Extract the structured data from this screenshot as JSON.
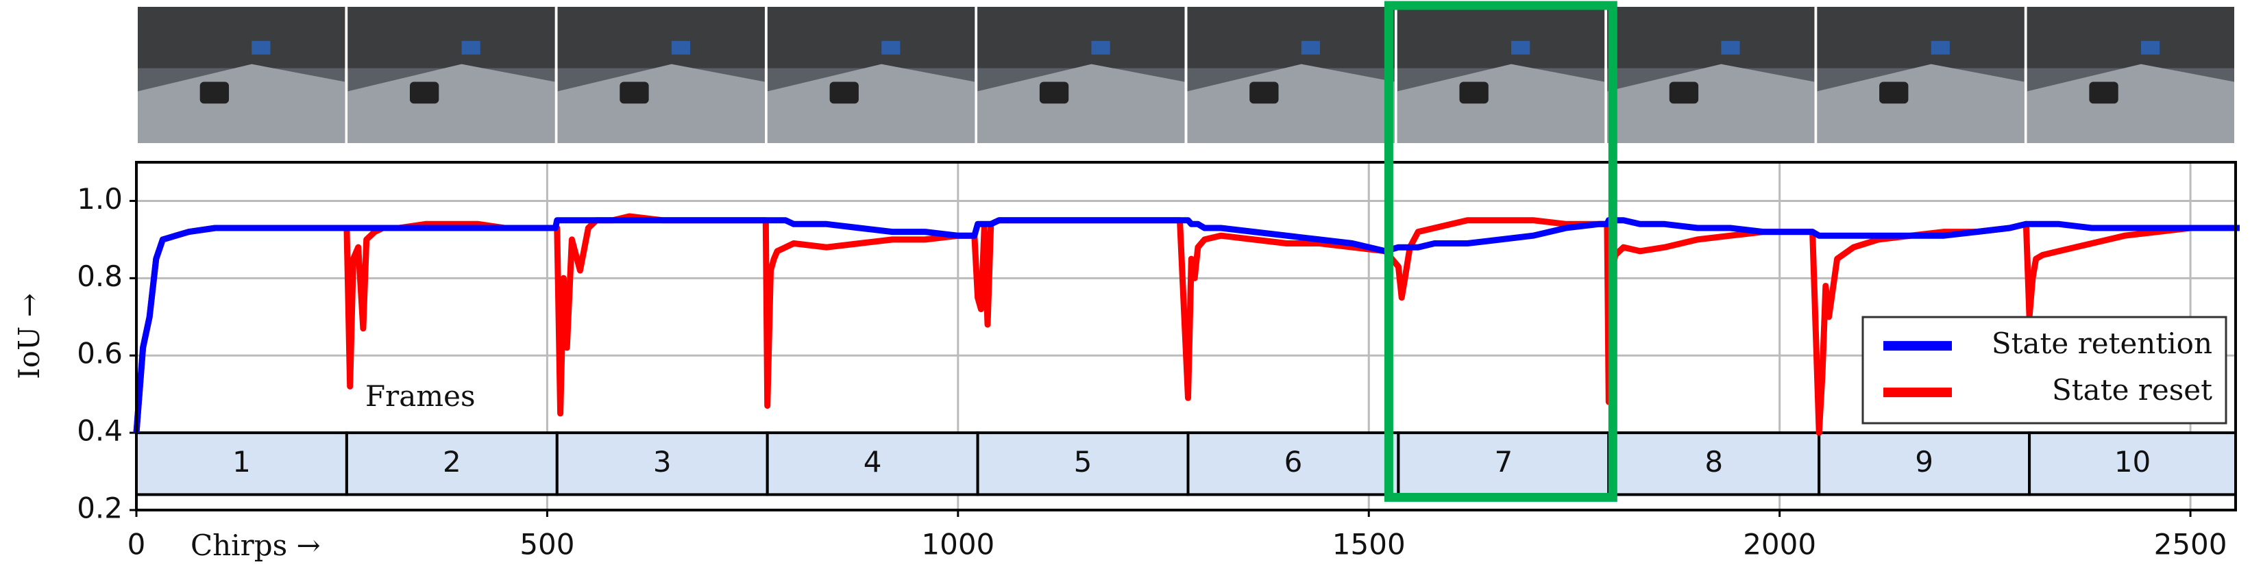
{
  "chart_data": {
    "type": "line",
    "x_label": "Chirps →",
    "y_label": "IoU →",
    "annotation": "Frames",
    "x": [
      0,
      8,
      16,
      24,
      32,
      48,
      64,
      96,
      128,
      160,
      192,
      224,
      250,
      256,
      260,
      264,
      270,
      276,
      280,
      290,
      300,
      320,
      352,
      384,
      416,
      448,
      480,
      510,
      512,
      516,
      520,
      524,
      530,
      540,
      550,
      560,
      580,
      600,
      640,
      680,
      720,
      760,
      766,
      768,
      772,
      776,
      780,
      790,
      800,
      840,
      880,
      920,
      960,
      1000,
      1020,
      1024,
      1028,
      1032,
      1036,
      1040,
      1050,
      1060,
      1080,
      1120,
      1160,
      1200,
      1240,
      1270,
      1280,
      1284,
      1288,
      1292,
      1300,
      1320,
      1360,
      1400,
      1440,
      1480,
      1520,
      1536,
      1540,
      1544,
      1550,
      1560,
      1580,
      1620,
      1660,
      1700,
      1740,
      1780,
      1790,
      1792,
      1796,
      1800,
      1810,
      1830,
      1860,
      1900,
      1940,
      1980,
      2020,
      2040,
      2048,
      2052,
      2056,
      2060,
      2070,
      2090,
      2120,
      2160,
      2200,
      2240,
      2280,
      2300,
      2304,
      2308,
      2312,
      2320,
      2340,
      2380,
      2420,
      2460,
      2500,
      2540,
      2560
    ],
    "series": [
      {
        "name": "State reset",
        "color": "#ff0000",
        "values": [
          0.4,
          0.62,
          0.7,
          0.85,
          0.9,
          0.91,
          0.92,
          0.93,
          0.93,
          0.93,
          0.93,
          0.93,
          0.93,
          0.93,
          0.52,
          0.85,
          0.88,
          0.67,
          0.9,
          0.92,
          0.93,
          0.93,
          0.94,
          0.94,
          0.94,
          0.93,
          0.93,
          0.93,
          0.93,
          0.45,
          0.8,
          0.62,
          0.9,
          0.82,
          0.93,
          0.95,
          0.95,
          0.96,
          0.95,
          0.95,
          0.95,
          0.95,
          0.95,
          0.47,
          0.82,
          0.85,
          0.87,
          0.88,
          0.89,
          0.88,
          0.89,
          0.9,
          0.9,
          0.91,
          0.91,
          0.75,
          0.72,
          0.93,
          0.68,
          0.94,
          0.95,
          0.95,
          0.95,
          0.95,
          0.95,
          0.95,
          0.95,
          0.95,
          0.49,
          0.85,
          0.8,
          0.88,
          0.9,
          0.91,
          0.9,
          0.89,
          0.89,
          0.88,
          0.87,
          0.83,
          0.75,
          0.8,
          0.88,
          0.92,
          0.93,
          0.95,
          0.95,
          0.95,
          0.94,
          0.94,
          0.94,
          0.48,
          0.82,
          0.86,
          0.88,
          0.87,
          0.88,
          0.9,
          0.91,
          0.92,
          0.92,
          0.92,
          0.4,
          0.55,
          0.78,
          0.7,
          0.85,
          0.88,
          0.9,
          0.91,
          0.92,
          0.92,
          0.93,
          0.94,
          0.7,
          0.8,
          0.85,
          0.86,
          0.87,
          0.89,
          0.91,
          0.92,
          0.93,
          0.93,
          0.93
        ]
      },
      {
        "name": "State retention",
        "color": "#0000ff",
        "values": [
          0.4,
          0.62,
          0.7,
          0.85,
          0.9,
          0.91,
          0.92,
          0.93,
          0.93,
          0.93,
          0.93,
          0.93,
          0.93,
          0.93,
          0.93,
          0.93,
          0.93,
          0.93,
          0.93,
          0.93,
          0.93,
          0.93,
          0.93,
          0.93,
          0.93,
          0.93,
          0.93,
          0.93,
          0.95,
          0.95,
          0.95,
          0.95,
          0.95,
          0.95,
          0.95,
          0.95,
          0.95,
          0.95,
          0.95,
          0.95,
          0.95,
          0.95,
          0.95,
          0.95,
          0.95,
          0.95,
          0.95,
          0.95,
          0.94,
          0.94,
          0.93,
          0.92,
          0.92,
          0.91,
          0.91,
          0.94,
          0.94,
          0.94,
          0.94,
          0.94,
          0.95,
          0.95,
          0.95,
          0.95,
          0.95,
          0.95,
          0.95,
          0.95,
          0.95,
          0.94,
          0.94,
          0.94,
          0.93,
          0.93,
          0.92,
          0.91,
          0.9,
          0.89,
          0.87,
          0.88,
          0.88,
          0.88,
          0.88,
          0.88,
          0.89,
          0.89,
          0.9,
          0.91,
          0.93,
          0.94,
          0.94,
          0.95,
          0.95,
          0.95,
          0.95,
          0.94,
          0.94,
          0.93,
          0.93,
          0.92,
          0.92,
          0.92,
          0.91,
          0.91,
          0.91,
          0.91,
          0.91,
          0.91,
          0.91,
          0.91,
          0.91,
          0.92,
          0.93,
          0.94,
          0.94,
          0.94,
          0.94,
          0.94,
          0.94,
          0.93,
          0.93,
          0.93,
          0.93,
          0.93,
          0.93
        ]
      }
    ],
    "legend_order": [
      1,
      0
    ],
    "legend": "lower right",
    "frames": [
      "1",
      "2",
      "3",
      "4",
      "5",
      "6",
      "7",
      "8",
      "9",
      "10"
    ],
    "frame_edges": [
      0,
      256,
      512,
      768,
      1024,
      1280,
      1536,
      1792,
      2048,
      2304,
      2560
    ],
    "frame_band": [
      0.24,
      0.4
    ],
    "frame_color": "#d5e3f4",
    "highlight_color": "#00b050",
    "xlim": [
      0,
      2555
    ],
    "xticks": [
      0,
      500,
      1000,
      1500,
      2000,
      2500
    ],
    "ylim": [
      0.2,
      1.1
    ],
    "yticks": [
      0.2,
      0.4,
      0.6,
      0.8,
      {
        "value": 1.0,
        "label": "1.0"
      }
    ],
    "grid": true
  }
}
